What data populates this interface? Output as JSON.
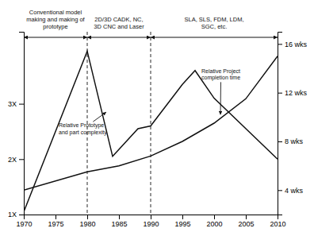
{
  "chart_data": {
    "type": "line",
    "color": "#111111",
    "grid": false,
    "xlim": [
      1970,
      2010
    ],
    "xticks": [
      1970,
      1975,
      1980,
      1985,
      1990,
      1995,
      2000,
      2005,
      2010
    ],
    "ylim": [
      1.0,
      4.3
    ],
    "yticks": [
      {
        "value": 1,
        "label": "1X"
      },
      {
        "value": 2,
        "label": "2X"
      },
      {
        "value": 3,
        "label": "3X"
      }
    ],
    "y2lim": [
      2.0,
      17.0
    ],
    "y2ticks": [
      {
        "value": 4,
        "label": "4 wks"
      },
      {
        "value": 8,
        "label": "8 wks"
      },
      {
        "value": 12,
        "label": "12 wks"
      },
      {
        "value": 16,
        "label": "16 wks"
      }
    ],
    "series": [
      {
        "x": [
          1970,
          1980,
          1984,
          1988,
          1990,
          1995,
          1997,
          2000,
          2010
        ],
        "values": [
          1.05,
          3.95,
          2.05,
          2.55,
          2.6,
          3.35,
          3.6,
          3.1,
          2.0
        ]
      },
      {
        "x": [
          1970,
          1980,
          1985,
          1990,
          1995,
          2000,
          2005,
          2010
        ],
        "values": [
          4.0,
          5.5,
          6.0,
          6.8,
          8.0,
          9.5,
          11.5,
          15.0
        ],
        "axis": "y2"
      }
    ],
    "vlines": [
      1980,
      1990
    ],
    "eras": [
      {
        "label": "Conventional model\nmaking and making of\nprototype",
        "start": 1970,
        "end": 1980
      },
      {
        "label": "2D/3D CADK, NC,\n3D CNC and Laser",
        "start": 1980,
        "end": 1990
      },
      {
        "label": "SLA, SLS, FDM, LDM,\nSGC, etc.",
        "start": 1990,
        "end": 2010
      }
    ],
    "annotations": [
      {
        "text": "Relative Prototype\nand part complexity",
        "x": 1983,
        "y": 2.85,
        "text_x": 1975.5,
        "text_y": 2.55
      },
      {
        "text": "Relative Project\ncompletion time",
        "x": 2001,
        "y": 10.2,
        "text_x": 1998,
        "text_y": 13.5,
        "axis": "y2"
      }
    ]
  }
}
